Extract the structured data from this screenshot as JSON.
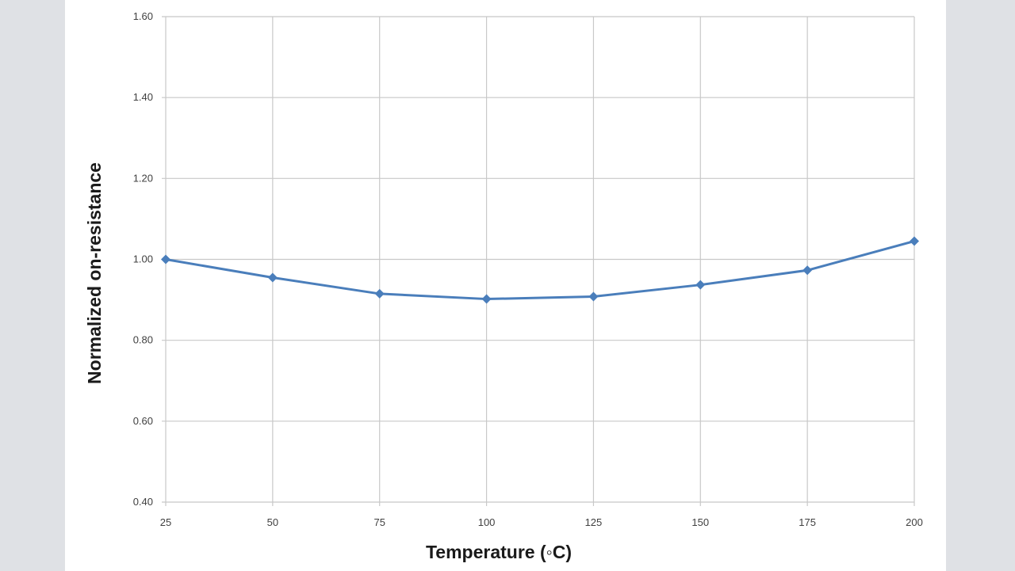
{
  "chart_data": {
    "type": "line",
    "title": "",
    "xlabel": "Temperature (◦C)",
    "ylabel": "Normalized on-resistance",
    "x": [
      25,
      50,
      75,
      100,
      125,
      150,
      175,
      200
    ],
    "x_tick_labels": [
      "25",
      "50",
      "75",
      "100",
      "125",
      "150",
      "175",
      "200"
    ],
    "y_tick_labels": [
      "0.40",
      "0.60",
      "0.80",
      "1.00",
      "1.20",
      "1.40",
      "1.60"
    ],
    "y_ticks": [
      0.4,
      0.6,
      0.8,
      1.0,
      1.2,
      1.4,
      1.6
    ],
    "ylim": [
      0.4,
      1.6
    ],
    "grid": true,
    "legend": "none",
    "series": [
      {
        "values": [
          1.0,
          0.955,
          0.915,
          0.902,
          0.908,
          0.937,
          0.973,
          1.045
        ],
        "color": "#4a7ebb",
        "marker": "diamond"
      }
    ]
  }
}
